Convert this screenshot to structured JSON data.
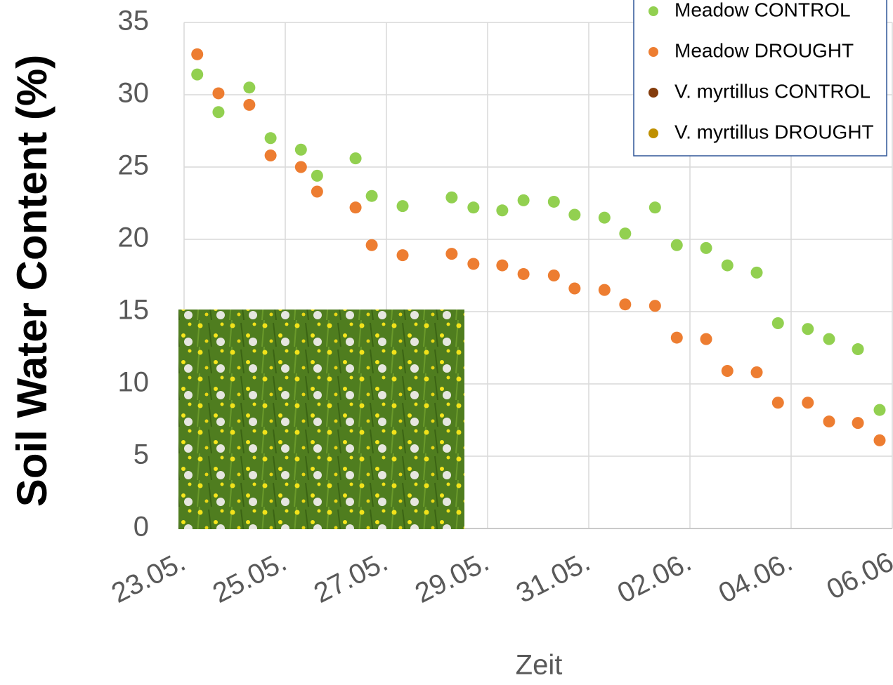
{
  "chart_data": {
    "type": "scatter",
    "y_label": "Soil Water Content (%)",
    "x_label": "Zeit",
    "x": [
      0.26,
      0.68,
      1.29,
      1.71,
      2.31,
      2.63,
      3.39,
      3.71,
      4.32,
      5.29,
      5.72,
      6.29,
      6.71,
      7.31,
      7.72,
      8.31,
      8.72,
      9.31,
      9.74,
      10.32,
      10.74,
      11.32,
      11.74,
      12.33,
      12.75,
      13.32,
      13.75
    ],
    "series": [
      {
        "name": "Meadow CONTROL",
        "color": "#92d050",
        "values": [
          31.4,
          28.8,
          30.5,
          27.0,
          26.2,
          24.4,
          25.6,
          23.0,
          22.3,
          22.9,
          22.2,
          22.0,
          22.7,
          22.6,
          21.7,
          21.5,
          20.4,
          22.2,
          19.6,
          19.4,
          18.2,
          17.7,
          14.2,
          13.8,
          13.1,
          12.4,
          8.2
        ]
      },
      {
        "name": "Meadow DROUGHT",
        "color": "#ed7d31",
        "values": [
          32.8,
          30.1,
          29.3,
          25.8,
          25.0,
          23.3,
          22.2,
          19.6,
          18.9,
          19.0,
          18.3,
          18.2,
          17.6,
          17.5,
          16.6,
          16.5,
          15.5,
          15.4,
          13.2,
          13.1,
          10.9,
          10.8,
          8.7,
          8.7,
          7.4,
          7.3,
          6.1
        ]
      },
      {
        "name": "V. myrtillus CONTROL",
        "color": "#843c0c",
        "values": [
          null,
          null,
          null,
          null,
          null,
          null,
          null,
          null,
          null,
          null,
          null,
          null,
          null,
          null,
          null,
          null,
          null,
          null,
          null,
          null,
          null,
          null,
          null,
          null,
          null,
          null,
          null
        ]
      },
      {
        "name": "V. myrtillus DROUGHT",
        "color": "#bf9000",
        "values": [
          null,
          null,
          null,
          null,
          null,
          null,
          null,
          null,
          null,
          null,
          null,
          null,
          null,
          null,
          null,
          null,
          null,
          null,
          null,
          null,
          null,
          null,
          null,
          null,
          null,
          null,
          null
        ]
      }
    ],
    "xlim": [
      0,
      14
    ],
    "xticks": [
      {
        "value": 0,
        "label": "23.05."
      },
      {
        "value": 2,
        "label": "25.05."
      },
      {
        "value": 4,
        "label": "27.05."
      },
      {
        "value": 6,
        "label": "29.05."
      },
      {
        "value": 8,
        "label": "31.05."
      },
      {
        "value": 10,
        "label": "02.06."
      },
      {
        "value": 12,
        "label": "04.06."
      },
      {
        "value": 14,
        "label": "06.06"
      }
    ],
    "ylim": [
      0,
      35
    ],
    "yticks": [
      0,
      5,
      10,
      15,
      20,
      25,
      30,
      35
    ],
    "grid": true,
    "legend": "upper right"
  }
}
